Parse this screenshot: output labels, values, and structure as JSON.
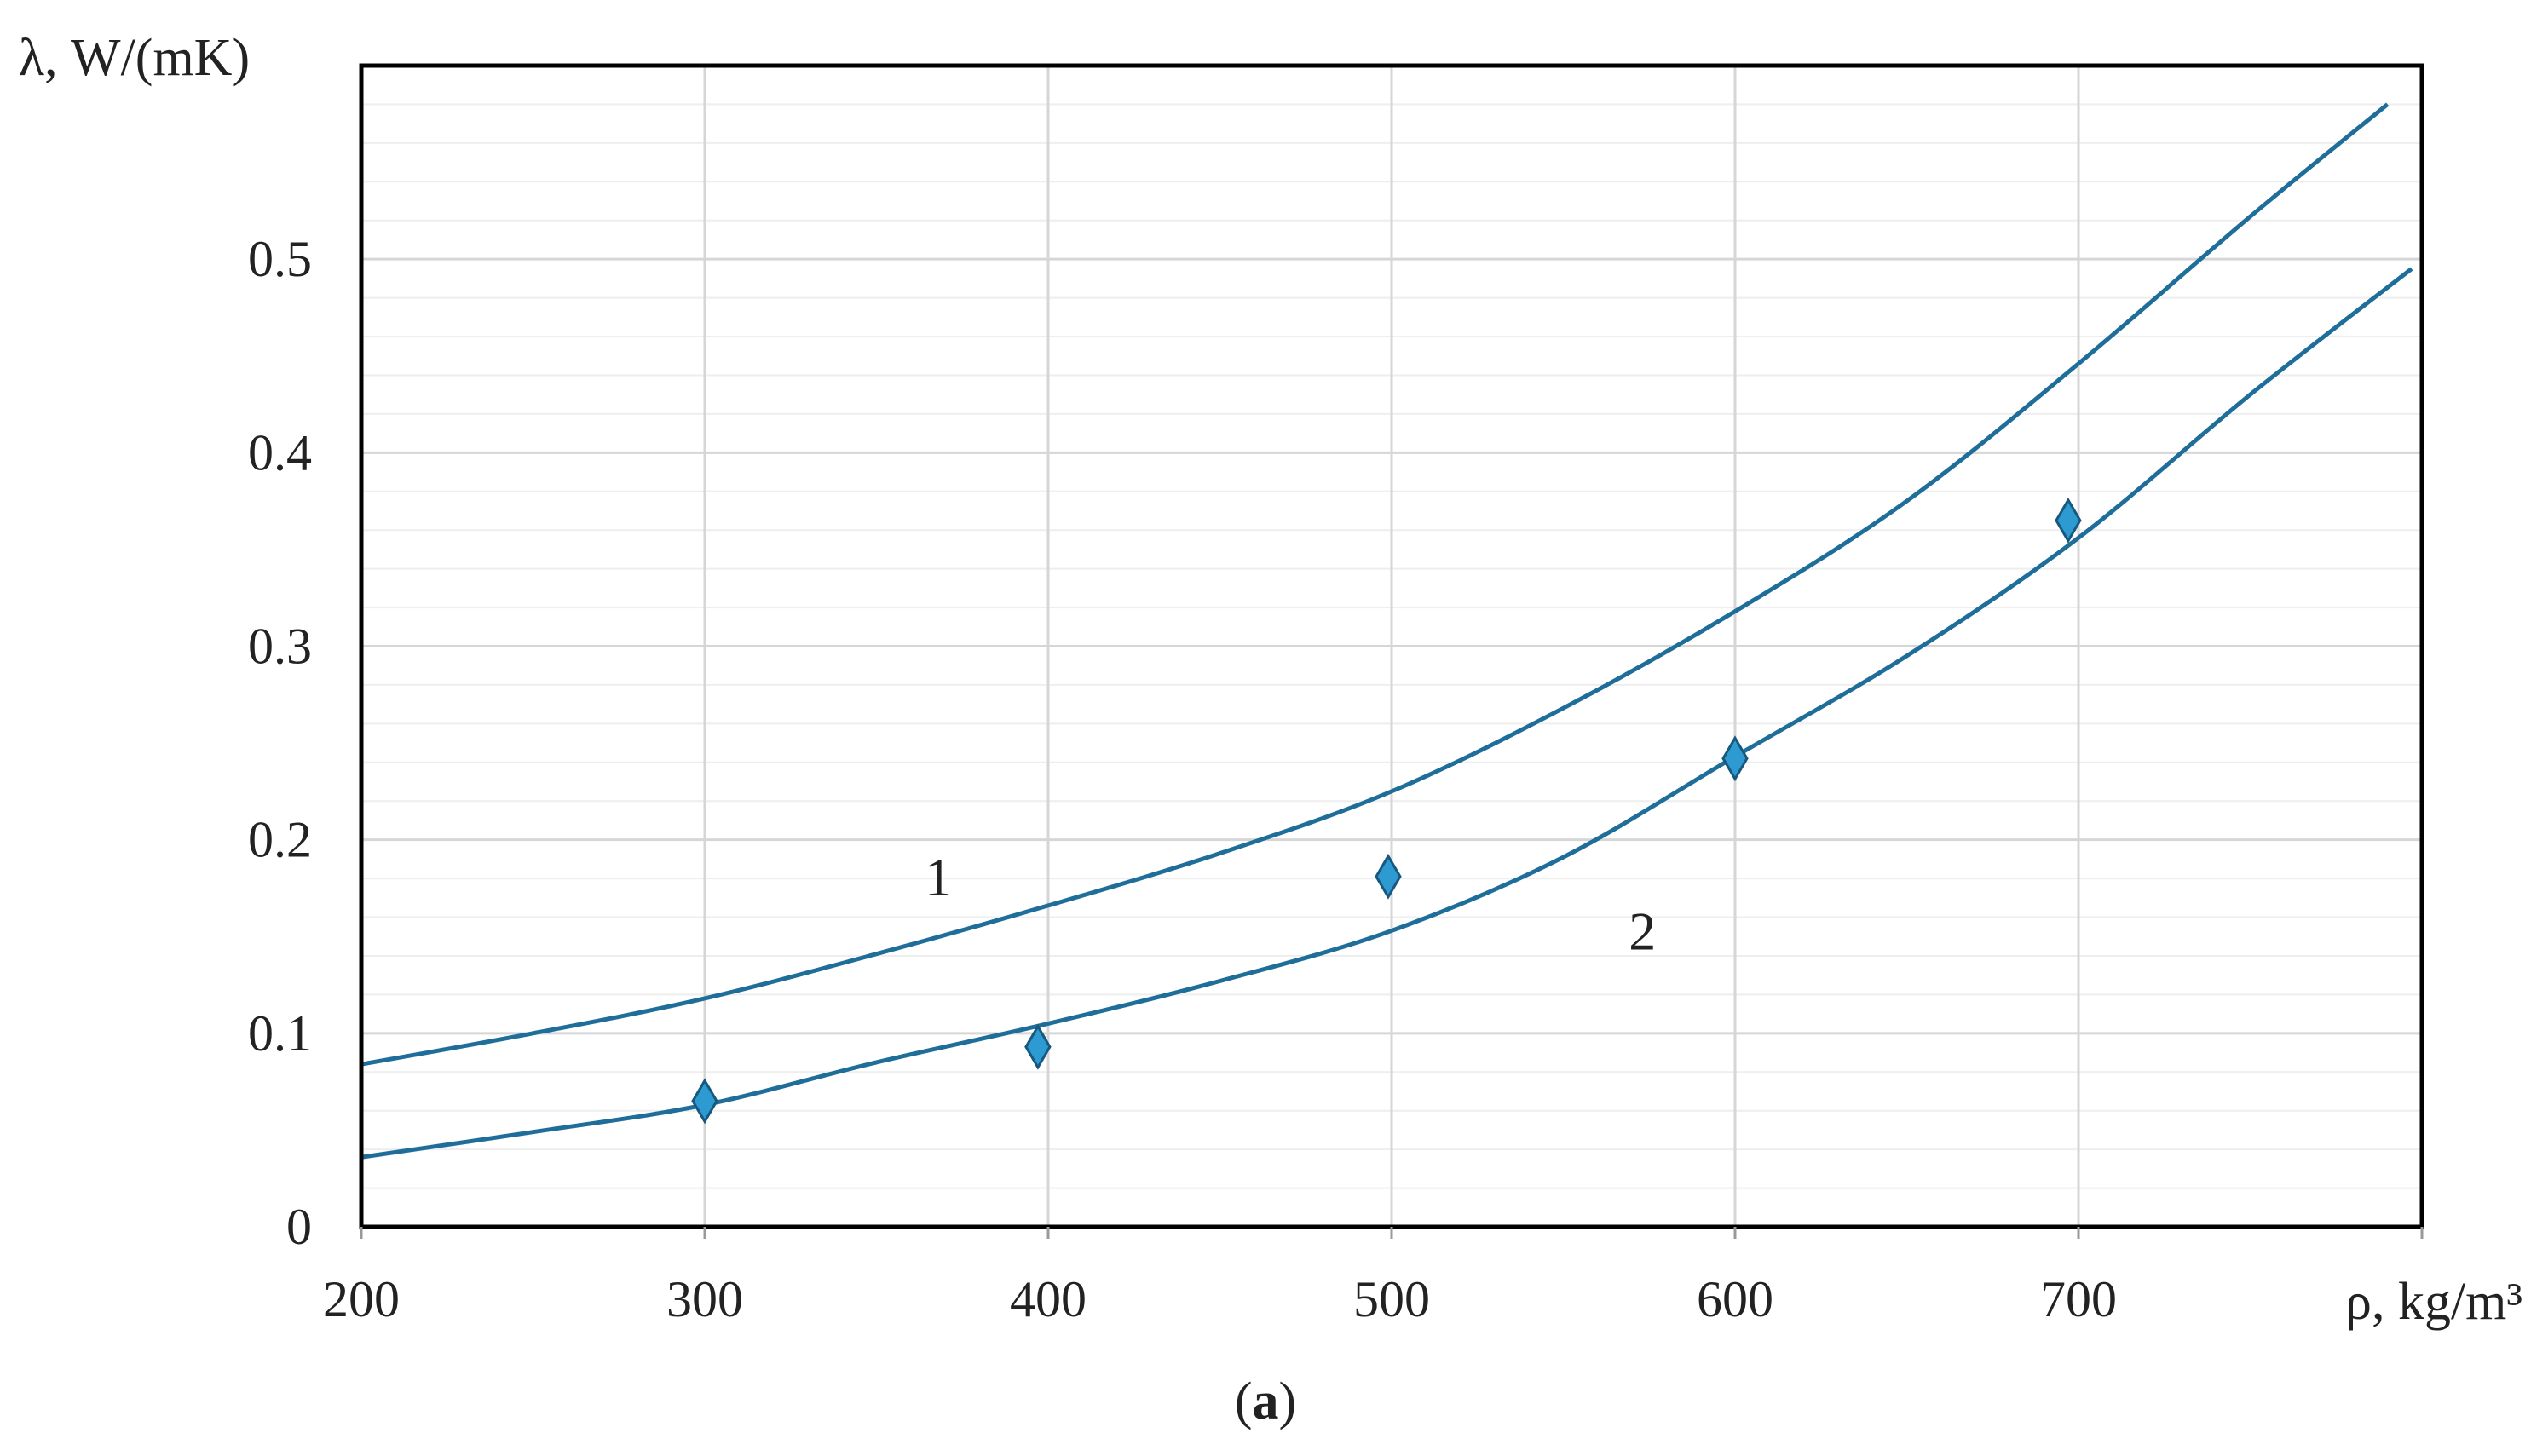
{
  "chart_data": {
    "type": "line",
    "ylabel": "λ, W/(mK)",
    "xlabel": "ρ, kg/m³",
    "caption": {
      "open": "(",
      "letter": "a",
      "close": ")"
    },
    "xlim": [
      200,
      800
    ],
    "ylim": [
      0,
      0.6
    ],
    "x_ticks": [
      "200",
      "300",
      "400",
      "500",
      "600",
      "700"
    ],
    "y_ticks": [
      "0",
      "0.1",
      "0.2",
      "0.3",
      "0.4",
      "0.5"
    ],
    "grid": true,
    "series": [
      {
        "name": "1",
        "style": "line",
        "color": "#1f6e9a",
        "x": [
          200,
          250,
          300,
          350,
          400,
          450,
          500,
          550,
          600,
          650,
          700,
          750,
          790
        ],
        "y": [
          0.084,
          0.1,
          0.118,
          0.141,
          0.166,
          0.193,
          0.225,
          0.268,
          0.318,
          0.375,
          0.446,
          0.522,
          0.58
        ]
      },
      {
        "name": "2",
        "style": "line",
        "color": "#1f6e9a",
        "x": [
          200,
          250,
          300,
          350,
          400,
          450,
          500,
          550,
          600,
          650,
          700,
          750,
          797
        ],
        "y": [
          0.036,
          0.049,
          0.063,
          0.085,
          0.105,
          0.127,
          0.153,
          0.191,
          0.243,
          0.295,
          0.356,
          0.43,
          0.495
        ]
      },
      {
        "name": "",
        "style": "markers",
        "color": "#2d9ad1",
        "x": [
          300,
          397,
          499,
          600,
          697
        ],
        "y": [
          0.065,
          0.093,
          0.181,
          0.242,
          0.365
        ]
      }
    ],
    "curve_labels": [
      {
        "text": "1",
        "x": 368,
        "y": 0.181
      },
      {
        "text": "2",
        "x": 573,
        "y": 0.153
      }
    ]
  }
}
